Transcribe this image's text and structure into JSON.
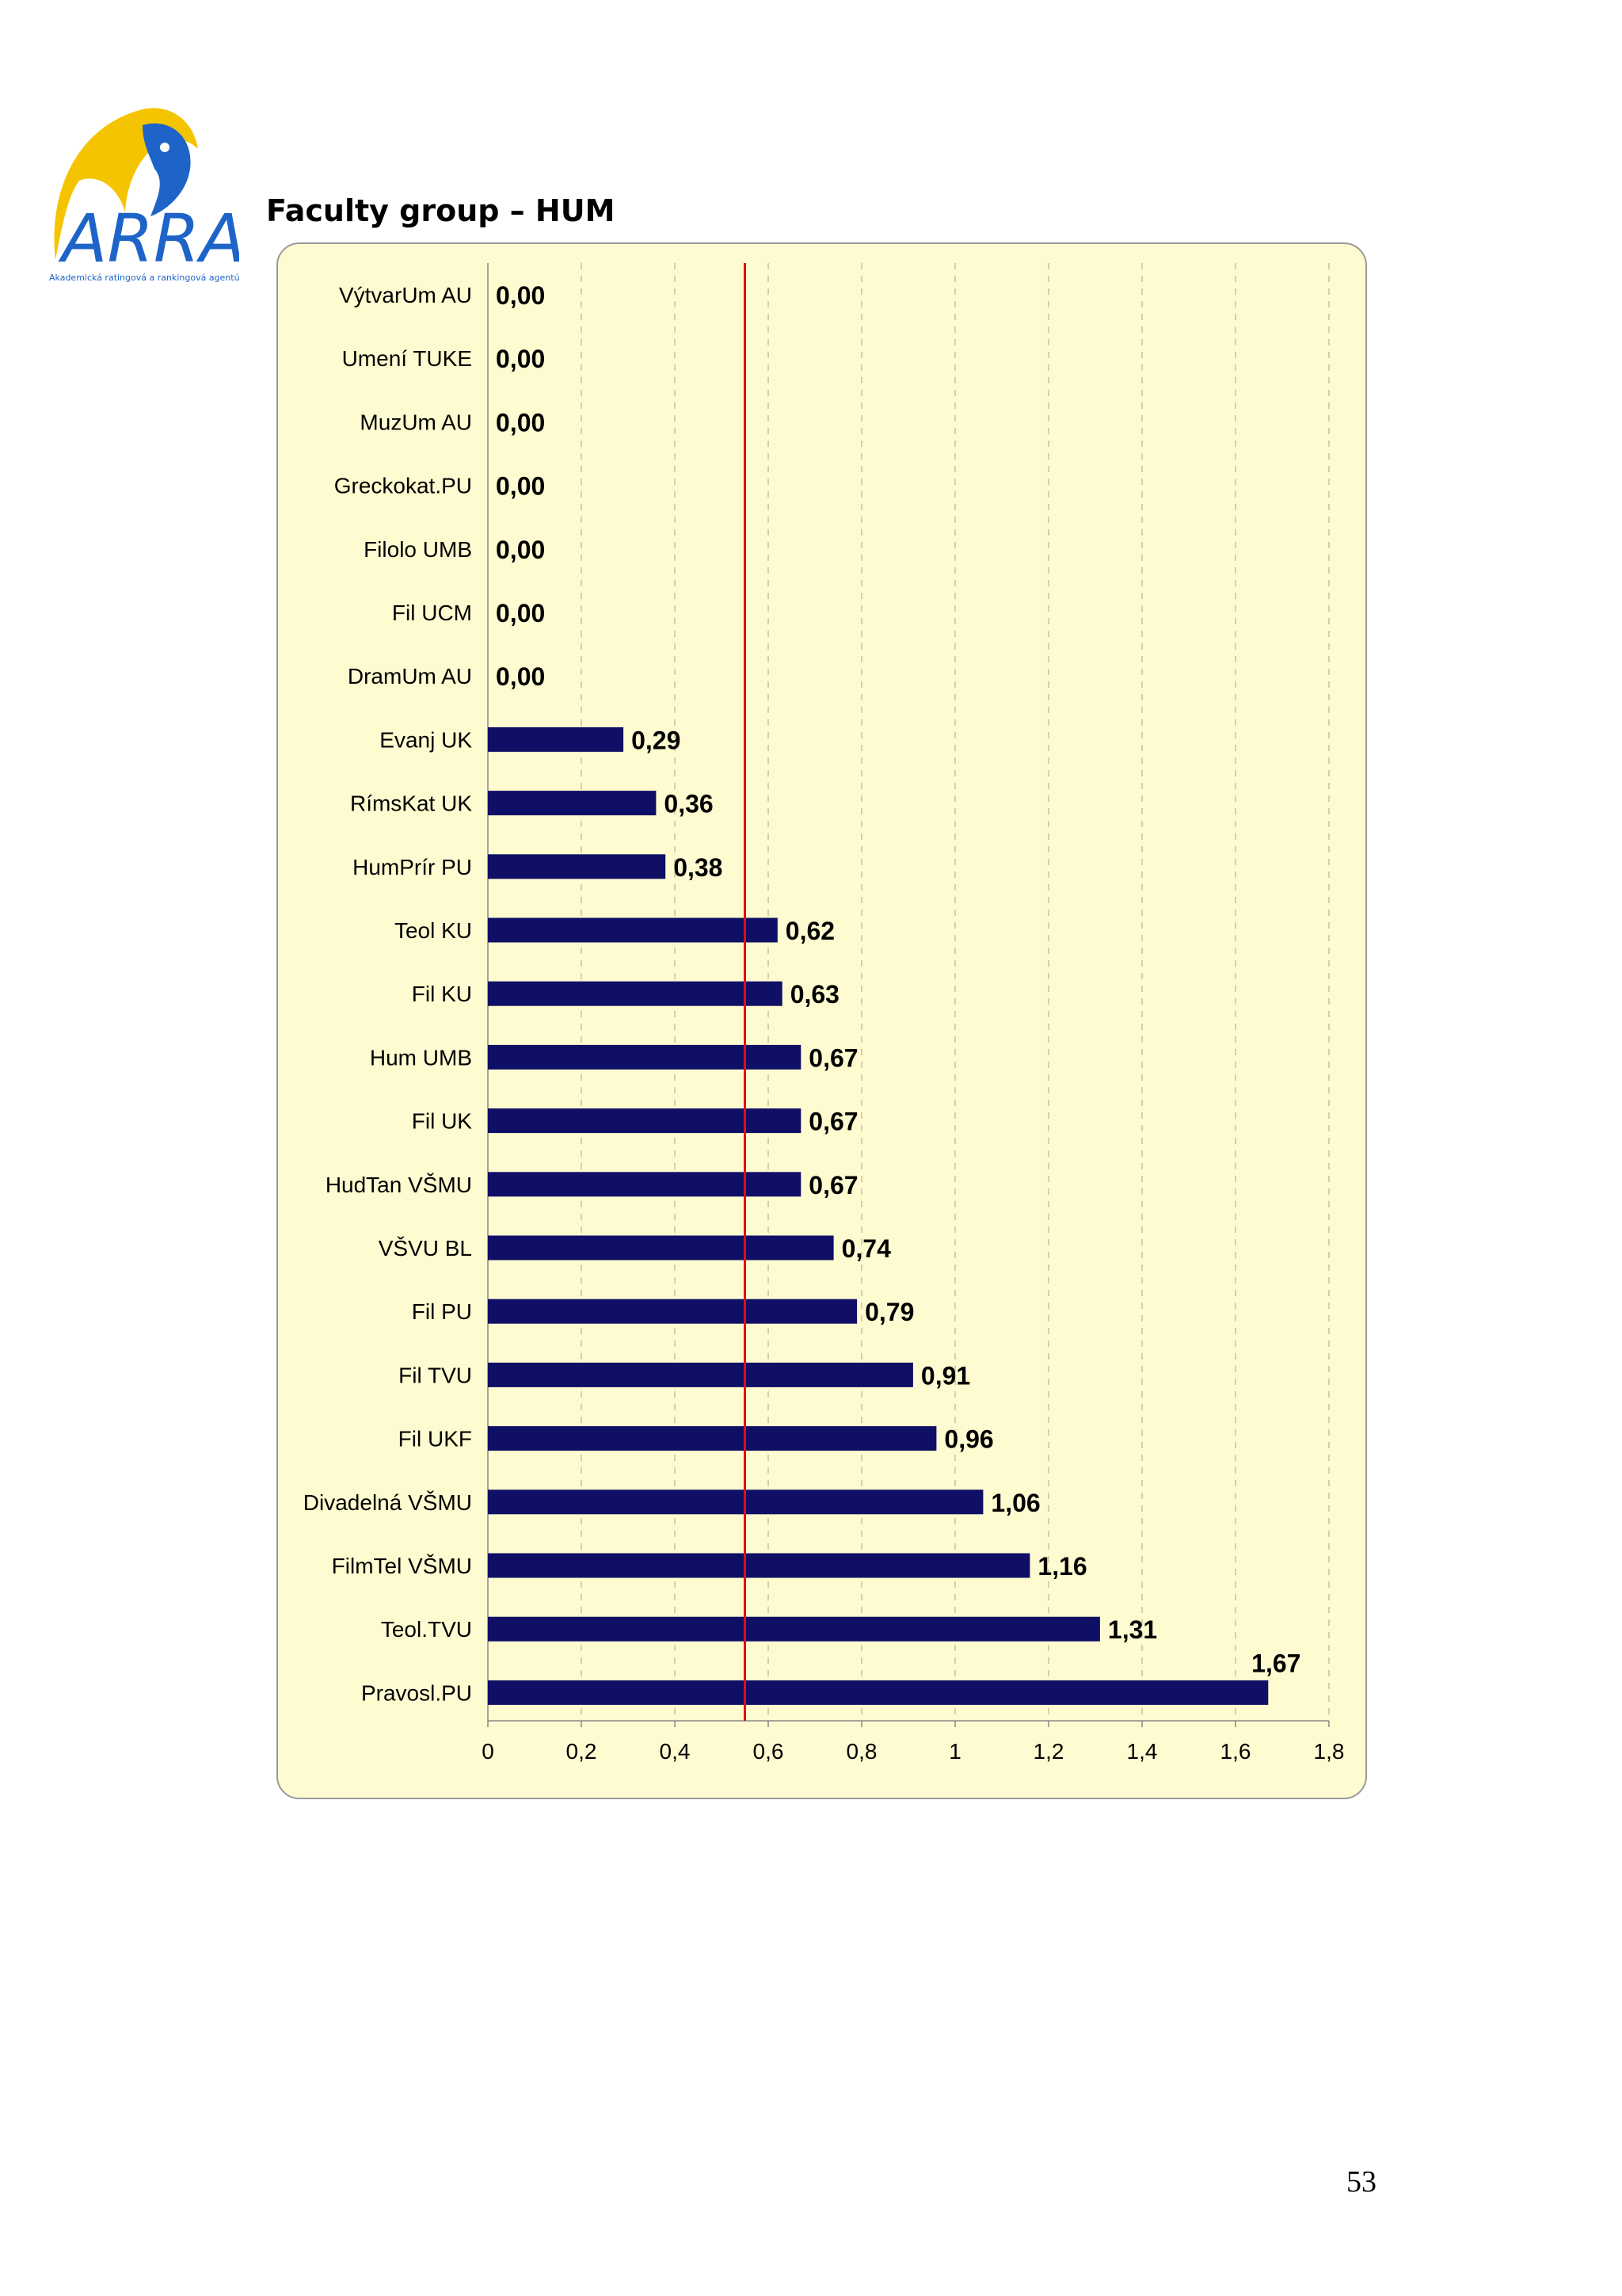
{
  "header": {
    "logo_text": "ARRA",
    "logo_subtitle": "Akademická ratingová a rankingová agentúra",
    "title": "Faculty group – HUM"
  },
  "footer": {
    "page_number": "53"
  },
  "colors": {
    "plot_background": "#fffbd0",
    "bar": "#0f0f66",
    "reference_line": "#dd1111",
    "logo_yellow": "#f5c400",
    "logo_blue": "#1e64c8"
  },
  "chart_data": {
    "type": "bar",
    "orientation": "horizontal",
    "title": "",
    "xlabel": "",
    "ylabel": "",
    "xlim": [
      0,
      1.8
    ],
    "x_ticks": [
      "0",
      "0,2",
      "0,4",
      "0,6",
      "0,8",
      "1",
      "1,2",
      "1,4",
      "1,6",
      "1,8"
    ],
    "grid": "vertical dashed",
    "reference_line": 0.55,
    "categories": [
      "VýtvarUm AU",
      "Umení TUKE",
      "MuzUm AU",
      "Greckokat.PU",
      "Filolo UMB",
      "Fil UCM",
      "DramUm AU",
      "Evanj UK",
      "RímsKat UK",
      "HumPrír PU",
      "Teol KU",
      "Fil KU",
      "Hum UMB",
      "Fil UK",
      "HudTan VŠMU",
      "VŠVU BL",
      "Fil PU",
      "Fil TVU",
      "Fil UKF",
      "Divadelná VŠMU",
      "FilmTel VŠMU",
      "Teol.TVU",
      "Pravosl.PU"
    ],
    "values": [
      0.0,
      0.0,
      0.0,
      0.0,
      0.0,
      0.0,
      0.0,
      0.29,
      0.36,
      0.38,
      0.62,
      0.63,
      0.67,
      0.67,
      0.67,
      0.74,
      0.79,
      0.91,
      0.96,
      1.06,
      1.16,
      1.31,
      1.67
    ],
    "value_labels": [
      "0,00",
      "0,00",
      "0,00",
      "0,00",
      "0,00",
      "0,00",
      "0,00",
      "0,29",
      "0,36",
      "0,38",
      "0,62",
      "0,63",
      "0,67",
      "0,67",
      "0,67",
      "0,74",
      "0,79",
      "0,91",
      "0,96",
      "1,06",
      "1,16",
      "1,31",
      "1,67"
    ]
  }
}
